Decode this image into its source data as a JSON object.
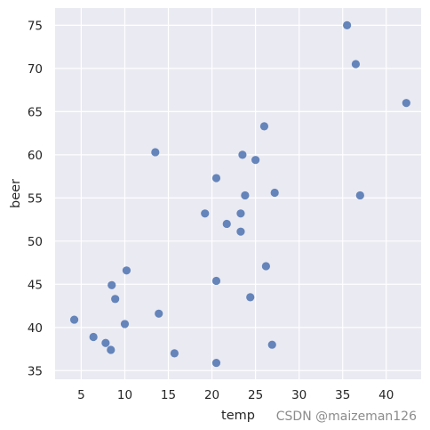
{
  "chart_data": {
    "type": "scatter",
    "title": "",
    "xlabel": "temp",
    "ylabel": "beer",
    "xlim": [
      2.0,
      44.0
    ],
    "ylim": [
      34.0,
      77.0
    ],
    "xticks": [
      5,
      10,
      15,
      20,
      25,
      30,
      35,
      40
    ],
    "yticks": [
      35,
      40,
      45,
      50,
      55,
      60,
      65,
      70,
      75
    ],
    "grid": true,
    "background": "#eaeaf2",
    "grid_color": "#ffffff",
    "point_color": "#4c72b0",
    "points": [
      {
        "x": 35.5,
        "y": 75.0
      },
      {
        "x": 36.5,
        "y": 70.5
      },
      {
        "x": 42.3,
        "y": 66.0
      },
      {
        "x": 26.0,
        "y": 63.3
      },
      {
        "x": 13.5,
        "y": 60.3
      },
      {
        "x": 23.5,
        "y": 60.0
      },
      {
        "x": 25.0,
        "y": 59.4
      },
      {
        "x": 20.5,
        "y": 57.3
      },
      {
        "x": 27.2,
        "y": 55.6
      },
      {
        "x": 23.8,
        "y": 55.3
      },
      {
        "x": 37.0,
        "y": 55.3
      },
      {
        "x": 19.2,
        "y": 53.2
      },
      {
        "x": 23.3,
        "y": 53.2
      },
      {
        "x": 21.7,
        "y": 52.0
      },
      {
        "x": 23.3,
        "y": 51.1
      },
      {
        "x": 26.2,
        "y": 47.1
      },
      {
        "x": 10.2,
        "y": 46.6
      },
      {
        "x": 20.5,
        "y": 45.4
      },
      {
        "x": 8.5,
        "y": 44.9
      },
      {
        "x": 8.9,
        "y": 43.3
      },
      {
        "x": 24.4,
        "y": 43.5
      },
      {
        "x": 13.9,
        "y": 41.6
      },
      {
        "x": 4.2,
        "y": 40.9
      },
      {
        "x": 10.0,
        "y": 40.4
      },
      {
        "x": 6.4,
        "y": 38.9
      },
      {
        "x": 7.8,
        "y": 38.2
      },
      {
        "x": 26.9,
        "y": 38.0
      },
      {
        "x": 8.4,
        "y": 37.4
      },
      {
        "x": 15.7,
        "y": 37.0
      },
      {
        "x": 20.5,
        "y": 35.9
      }
    ]
  },
  "watermark": "CSDN @maizeman126"
}
